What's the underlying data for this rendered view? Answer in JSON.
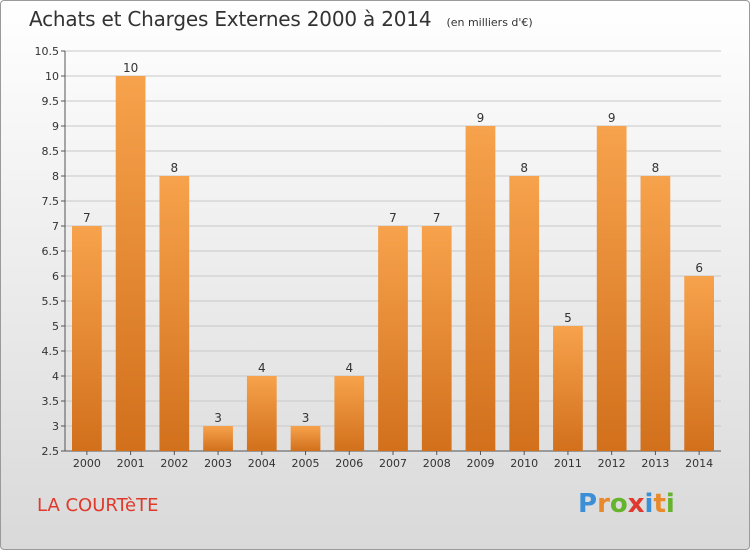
{
  "header": {
    "title": "Achats et Charges Externes 2000 à 2014",
    "subtitle": "(en milliers d'€)"
  },
  "footer": {
    "commune": "LA COURTèTE",
    "brand": "Proxiti",
    "brand_letters": [
      {
        "ch": "P",
        "color": "#3b8fd6"
      },
      {
        "ch": "r",
        "color": "#e8892b"
      },
      {
        "ch": "o",
        "color": "#66b32e"
      },
      {
        "ch": "x",
        "color": "#e03a2f"
      },
      {
        "ch": "i",
        "color": "#3b8fd6"
      },
      {
        "ch": "t",
        "color": "#e8892b"
      },
      {
        "ch": "i",
        "color": "#66b32e"
      }
    ]
  },
  "chart_data": {
    "type": "bar",
    "categories": [
      "2000",
      "2001",
      "2002",
      "2003",
      "2004",
      "2005",
      "2006",
      "2007",
      "2008",
      "2009",
      "2010",
      "2011",
      "2012",
      "2013",
      "2014"
    ],
    "values": [
      7,
      10,
      8,
      3,
      4,
      3,
      4,
      7,
      7,
      9,
      8,
      5,
      9,
      8,
      6
    ],
    "ylim": [
      2.5,
      10.5
    ],
    "yticks": [
      "2.5",
      "3",
      "3.5",
      "4",
      "4.5",
      "5",
      "5.5",
      "6",
      "6.5",
      "7",
      "7.5",
      "8",
      "8.5",
      "9",
      "9.5",
      "10",
      "10.5"
    ],
    "grid": true,
    "legend": "none",
    "bar_color_top": "#f7a24c",
    "bar_color_bottom": "#d2701c",
    "grid_color": "#c8c8c8"
  }
}
